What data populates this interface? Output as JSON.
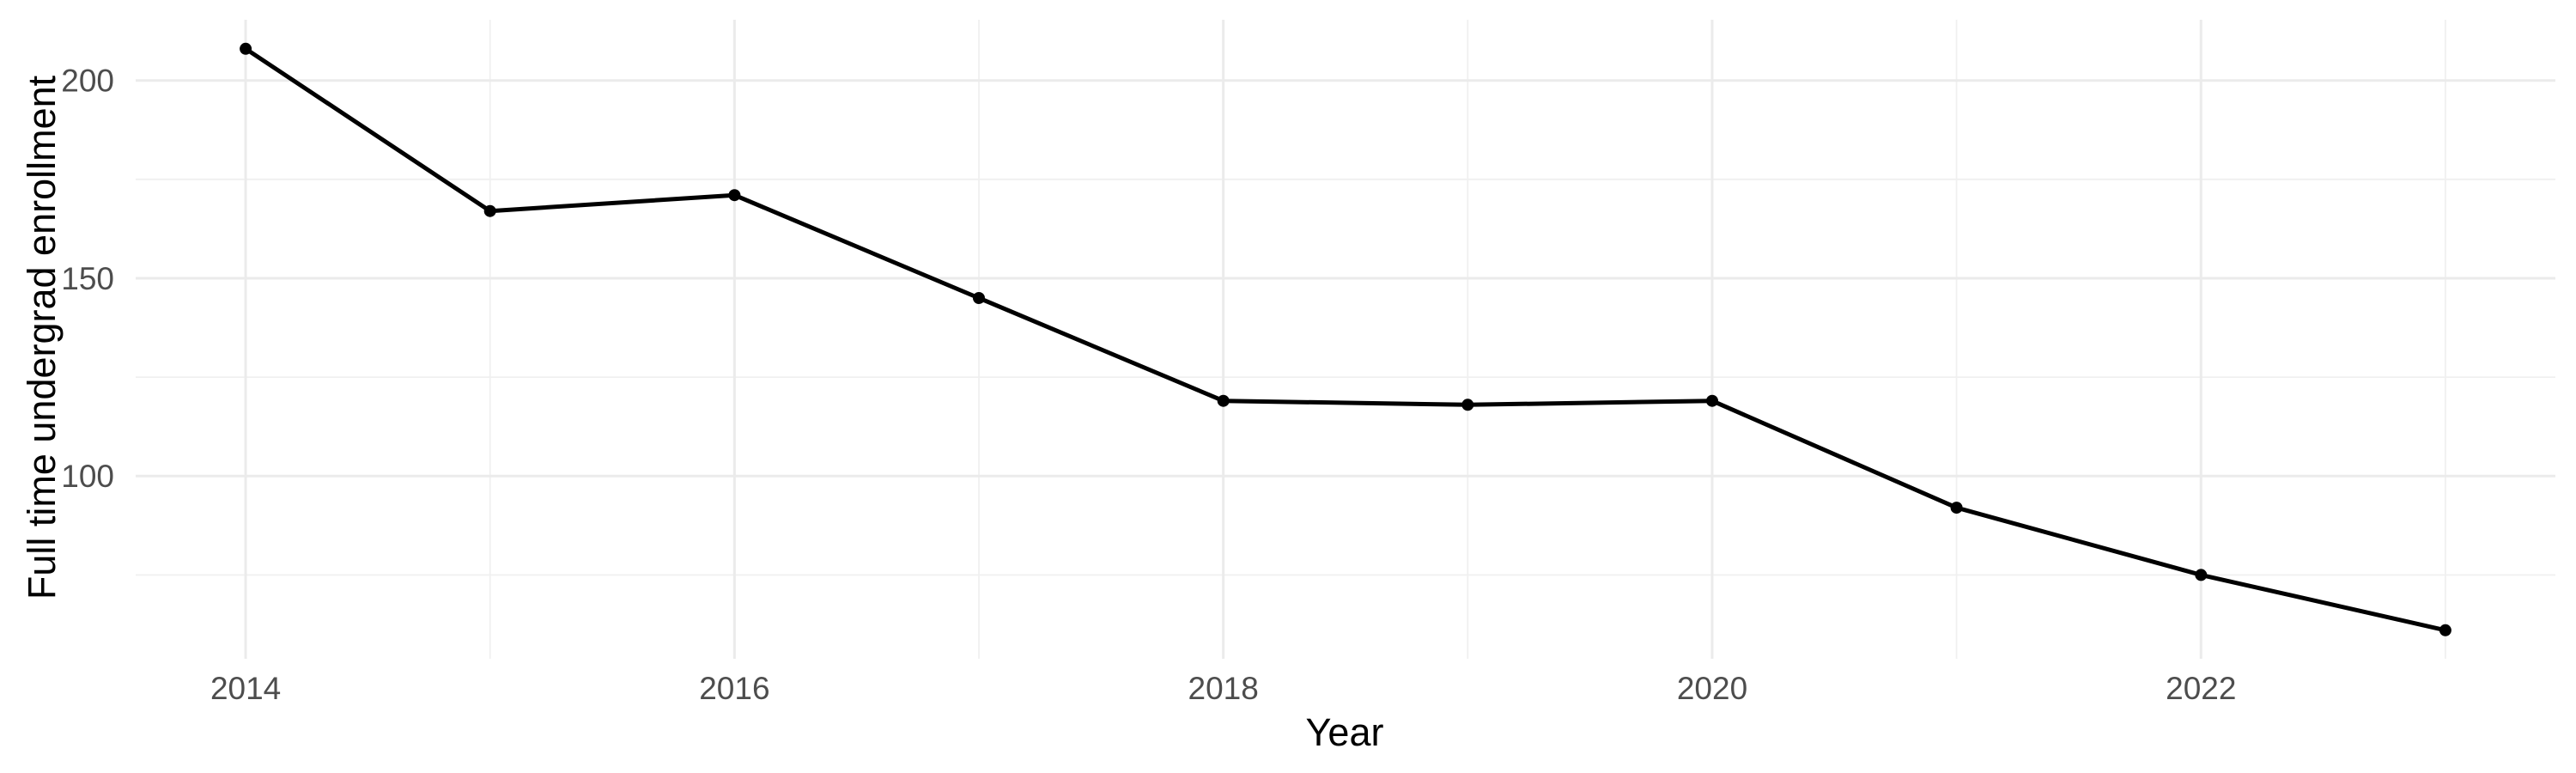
{
  "figure": {
    "background": "#ffffff",
    "title": ""
  },
  "chart_data": {
    "type": "line",
    "title": "",
    "xlabel": "Year",
    "ylabel": "Full time undergrad enrollment",
    "x": [
      2014,
      2015,
      2016,
      2017,
      2018,
      2019,
      2020,
      2021,
      2022,
      2023
    ],
    "values": [
      208,
      167,
      171,
      145,
      119,
      118,
      119,
      92,
      75,
      61
    ],
    "series": [
      {
        "name": "Full time undergrad enrollment",
        "values": [
          208,
          167,
          171,
          145,
          119,
          118,
          119,
          92,
          75,
          61
        ]
      }
    ],
    "xlim": [
      2013.55,
      2023.45
    ],
    "ylim": [
      53.8,
      215.35
    ],
    "x_major_ticks": [
      2014,
      2016,
      2018,
      2020,
      2022
    ],
    "x_minor_gridlines": [
      2015,
      2017,
      2019,
      2021,
      2023
    ],
    "y_major_ticks": [
      100,
      150,
      200
    ],
    "y_minor_gridlines": [
      75,
      125,
      175
    ],
    "grid": "on",
    "legend": "none",
    "marker": "filled-circle",
    "line_color": "#000000",
    "point_color": "#000000",
    "colors": {
      "grid_major": "#ebebeb",
      "grid_minor": "#f0f0f0",
      "tick_label": "#4d4d4d",
      "axis_title": "#000000",
      "background": "#ffffff"
    }
  }
}
